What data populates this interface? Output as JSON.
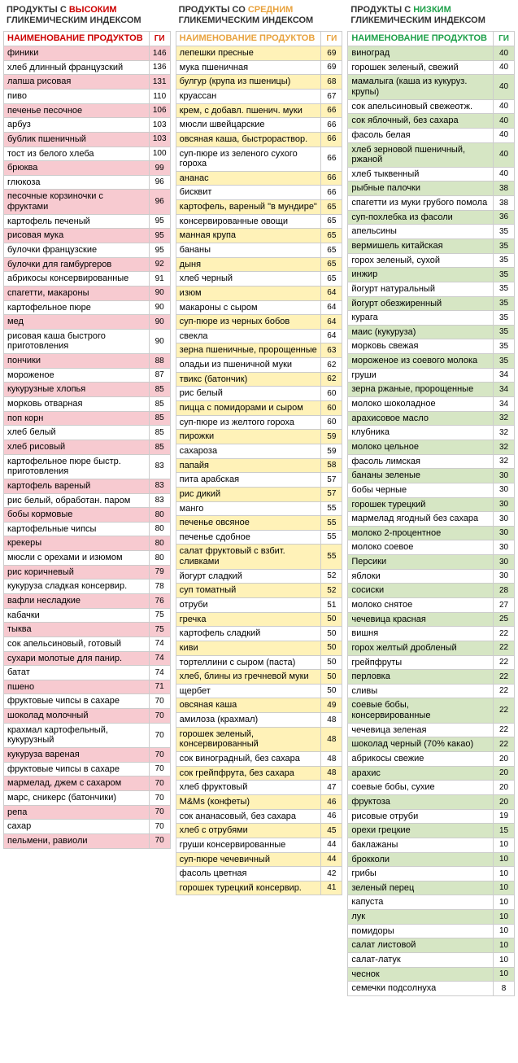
{
  "columns": [
    {
      "title_prefix": "ПРОДУКТЫ С ",
      "title_accent": "ВЫСОКИМ",
      "title_suffix": " ГЛИКЕМИЧЕСКИМ ИНДЕКСОМ",
      "accent_color": "#cc0000",
      "hl_color": "#f7cad0",
      "header_name": "НАИМЕНОВАНИЕ ПРОДУКТОВ",
      "header_gi": "ГИ",
      "gap_after": 29,
      "rows": [
        {
          "n": "финики",
          "g": 146,
          "hl": true
        },
        {
          "n": "хлеб длинный французский",
          "g": 136,
          "hl": false
        },
        {
          "n": "лапша рисовая",
          "g": 131,
          "hl": true
        },
        {
          "n": "пиво",
          "g": 110,
          "hl": false
        },
        {
          "n": "печенье песочное",
          "g": 106,
          "hl": true
        },
        {
          "n": "арбуз",
          "g": 103,
          "hl": false
        },
        {
          "n": "бублик пшеничный",
          "g": 103,
          "hl": true
        },
        {
          "n": "тост из белого хлеба",
          "g": 100,
          "hl": false
        },
        {
          "n": "брюква",
          "g": 99,
          "hl": true
        },
        {
          "n": "глюкоза",
          "g": 96,
          "hl": false
        },
        {
          "n": "песочные корзиночки с фруктами",
          "g": 96,
          "hl": true
        },
        {
          "n": "картофель печеный",
          "g": 95,
          "hl": false
        },
        {
          "n": "рисовая мука",
          "g": 95,
          "hl": true
        },
        {
          "n": "булочки французские",
          "g": 95,
          "hl": false
        },
        {
          "n": "булочки для гамбургеров",
          "g": 92,
          "hl": true
        },
        {
          "n": "абрикосы консервированные",
          "g": 91,
          "hl": false
        },
        {
          "n": "спагетти, макароны",
          "g": 90,
          "hl": true
        },
        {
          "n": "картофельное пюре",
          "g": 90,
          "hl": false
        },
        {
          "n": "мед",
          "g": 90,
          "hl": true
        },
        {
          "n": "рисовая каша быстрого приготовления",
          "g": 90,
          "hl": false
        },
        {
          "n": "пончики",
          "g": 88,
          "hl": true
        },
        {
          "n": "мороженое",
          "g": 87,
          "hl": false
        },
        {
          "n": "кукурузные хлопья",
          "g": 85,
          "hl": true
        },
        {
          "n": "морковь отварная",
          "g": 85,
          "hl": false
        },
        {
          "n": "поп корн",
          "g": 85,
          "hl": true
        },
        {
          "n": "хлеб белый",
          "g": 85,
          "hl": false
        },
        {
          "n": "хлеб рисовый",
          "g": 85,
          "hl": true
        },
        {
          "n": "картофельное пюре быстр. приготовления",
          "g": 83,
          "hl": false
        },
        {
          "n": "картофель вареный",
          "g": 83,
          "hl": true
        },
        {
          "n": "рис белый, обработан. паром",
          "g": 83,
          "hl": false
        },
        {
          "n": "бобы кормовые",
          "g": 80,
          "hl": true
        },
        {
          "n": "картофельные чипсы",
          "g": 80,
          "hl": false
        },
        {
          "n": "крекеры",
          "g": 80,
          "hl": true
        },
        {
          "n": "мюсли с орехами и изюмом",
          "g": 80,
          "hl": false
        },
        {
          "n": "рис коричневый",
          "g": 79,
          "hl": true
        },
        {
          "n": "кукуруза сладкая консервир.",
          "g": 78,
          "hl": false
        },
        {
          "n": "вафли несладкие",
          "g": 76,
          "hl": true
        },
        {
          "n": "кабачки",
          "g": 75,
          "hl": false
        },
        {
          "n": "тыква",
          "g": 75,
          "hl": true
        },
        {
          "n": "сок апельсиновый, готовый",
          "g": 74,
          "hl": false
        },
        {
          "n": "сухари молотые для панир.",
          "g": 74,
          "hl": true
        },
        {
          "n": "батат",
          "g": 74,
          "hl": false
        },
        {
          "n": "пшено",
          "g": 71,
          "hl": true
        },
        {
          "n": "фруктовые чипсы в сахаре",
          "g": 70,
          "hl": false
        },
        {
          "n": "шоколад молочный",
          "g": 70,
          "hl": true
        },
        {
          "n": "крахмал картофельный, кукурузный",
          "g": 70,
          "hl": false
        },
        {
          "n": "кукуруза вареная",
          "g": 70,
          "hl": true
        },
        {
          "n": "фруктовые чипсы в сахаре",
          "g": 70,
          "hl": false
        },
        {
          "n": "мармелад, джем с сахаром",
          "g": 70,
          "hl": true
        },
        {
          "n": "марс, сникерс (батончики)",
          "g": 70,
          "hl": false
        },
        {
          "n": "репа",
          "g": 70,
          "hl": true
        },
        {
          "n": "сахар",
          "g": 70,
          "hl": false
        },
        {
          "n": "пельмени, равиоли",
          "g": 70,
          "hl": true
        }
      ]
    },
    {
      "title_prefix": "ПРОДУКТЫ СО ",
      "title_accent": "СРЕДНИМ",
      "title_suffix": " ГЛИКЕМИЧЕСКИМ ИНДЕКСОМ",
      "accent_color": "#e8a23d",
      "hl_color": "#fff2b8",
      "header_name": "НАИМЕНОВАНИЕ ПРОДУКТОВ",
      "header_gi": "ГИ",
      "gap_after": 29,
      "rows": [
        {
          "n": "лепешки пресные",
          "g": 69,
          "hl": true
        },
        {
          "n": "мука пшеничная",
          "g": 69,
          "hl": false
        },
        {
          "n": "булгур (крупа из пшеницы)",
          "g": 68,
          "hl": true
        },
        {
          "n": "круассан",
          "g": 67,
          "hl": false
        },
        {
          "n": "крем, с добавл. пшенич. муки",
          "g": 66,
          "hl": true
        },
        {
          "n": "мюсли швейцарские",
          "g": 66,
          "hl": false
        },
        {
          "n": "овсяная каша, быстрораствор.",
          "g": 66,
          "hl": true
        },
        {
          "n": "суп-пюре из зеленого сухого гороха",
          "g": 66,
          "hl": false
        },
        {
          "n": "ананас",
          "g": 66,
          "hl": true
        },
        {
          "n": "бисквит",
          "g": 66,
          "hl": false
        },
        {
          "n": "картофель, вареный \"в мундире\"",
          "g": 65,
          "hl": true
        },
        {
          "n": "консервированные овощи",
          "g": 65,
          "hl": false
        },
        {
          "n": "манная крупа",
          "g": 65,
          "hl": true
        },
        {
          "n": "бананы",
          "g": 65,
          "hl": false
        },
        {
          "n": "дыня",
          "g": 65,
          "hl": true
        },
        {
          "n": "хлеб черный",
          "g": 65,
          "hl": false
        },
        {
          "n": "изюм",
          "g": 64,
          "hl": true
        },
        {
          "n": "макароны с сыром",
          "g": 64,
          "hl": false
        },
        {
          "n": "суп-пюре из черных бобов",
          "g": 64,
          "hl": true
        },
        {
          "n": "свекла",
          "g": 64,
          "hl": false
        },
        {
          "n": "зерна пшеничные, пророщенные",
          "g": 63,
          "hl": true
        },
        {
          "n": "оладьи из пшеничной муки",
          "g": 62,
          "hl": false
        },
        {
          "n": "твикс (батончик)",
          "g": 62,
          "hl": true
        },
        {
          "n": "рис белый",
          "g": 60,
          "hl": false
        },
        {
          "n": "пицца с помидорами и сыром",
          "g": 60,
          "hl": true
        },
        {
          "n": "суп-пюре из желтого гороха",
          "g": 60,
          "hl": false
        },
        {
          "n": "пирожки",
          "g": 59,
          "hl": true
        },
        {
          "n": "сахароза",
          "g": 59,
          "hl": false
        },
        {
          "n": "папайя",
          "g": 58,
          "hl": true
        },
        {
          "n": "пита арабская",
          "g": 57,
          "hl": false
        },
        {
          "n": "рис дикий",
          "g": 57,
          "hl": true
        },
        {
          "n": "манго",
          "g": 55,
          "hl": false
        },
        {
          "n": "печенье овсяное",
          "g": 55,
          "hl": true
        },
        {
          "n": "печенье сдобное",
          "g": 55,
          "hl": false
        },
        {
          "n": "салат фруктовый с взбит. сливками",
          "g": 55,
          "hl": true
        },
        {
          "n": "йогурт сладкий",
          "g": 52,
          "hl": false
        },
        {
          "n": "суп томатный",
          "g": 52,
          "hl": true
        },
        {
          "n": "отруби",
          "g": 51,
          "hl": false
        },
        {
          "n": "гречка",
          "g": 50,
          "hl": true
        },
        {
          "n": "картофель сладкий",
          "g": 50,
          "hl": false
        },
        {
          "n": "киви",
          "g": 50,
          "hl": true
        },
        {
          "n": "тортеллини с сыром (паста)",
          "g": 50,
          "hl": false
        },
        {
          "n": "хлеб, блины из гречневой муки",
          "g": 50,
          "hl": true
        },
        {
          "n": "щербет",
          "g": 50,
          "hl": false
        },
        {
          "n": "овсяная каша",
          "g": 49,
          "hl": true
        },
        {
          "n": "амилоза (крахмал)",
          "g": 48,
          "hl": false
        },
        {
          "n": "горошек зеленый, консервированный",
          "g": 48,
          "hl": true
        },
        {
          "n": "сок виноградный, без сахара",
          "g": 48,
          "hl": false
        },
        {
          "n": "сок грейпфрута, без сахара",
          "g": 48,
          "hl": true
        },
        {
          "n": "хлеб фруктовый",
          "g": 47,
          "hl": false
        },
        {
          "n": "M&Ms (конфеты)",
          "g": 46,
          "hl": true
        },
        {
          "n": "сок ананасовый, без сахара",
          "g": 46,
          "hl": false
        },
        {
          "n": "хлеб с отрубями",
          "g": 45,
          "hl": true
        },
        {
          "n": "груши консервированные",
          "g": 44,
          "hl": false
        },
        {
          "n": "суп-пюре чечевичный",
          "g": 44,
          "hl": true
        },
        {
          "n": "фасоль цветная",
          "g": 42,
          "hl": false
        },
        {
          "n": "горошек турецкий консервир.",
          "g": 41,
          "hl": true
        }
      ]
    },
    {
      "title_prefix": "ПРОДУКТЫ С ",
      "title_accent": "НИЗКИМ",
      "title_suffix": " ГЛИКЕМИЧЕСКИМ ИНДЕКСОМ",
      "accent_color": "#1fa04a",
      "hl_color": "#d6e6c4",
      "header_name": "НАИМЕНОВАНИЕ ПРОДУКТОВ",
      "header_gi": "ГИ",
      "gap_after": 29,
      "rows": [
        {
          "n": "виноград",
          "g": 40,
          "hl": true
        },
        {
          "n": "горошек зеленый, свежий",
          "g": 40,
          "hl": false
        },
        {
          "n": "мамалыга (каша из кукуруз. крупы)",
          "g": 40,
          "hl": true
        },
        {
          "n": "сок апельсиновый свежеотж.",
          "g": 40,
          "hl": false
        },
        {
          "n": "сок яблочный, без сахара",
          "g": 40,
          "hl": true
        },
        {
          "n": "фасоль белая",
          "g": 40,
          "hl": false
        },
        {
          "n": "хлеб зерновой пшеничный, ржаной",
          "g": 40,
          "hl": true
        },
        {
          "n": "хлеб тыквенный",
          "g": 40,
          "hl": false
        },
        {
          "n": "рыбные палочки",
          "g": 38,
          "hl": true
        },
        {
          "n": "спагетти из муки грубого помола",
          "g": 38,
          "hl": false
        },
        {
          "n": "суп-похлебка из фасоли",
          "g": 36,
          "hl": true
        },
        {
          "n": "апельсины",
          "g": 35,
          "hl": false
        },
        {
          "n": "вермишель китайская",
          "g": 35,
          "hl": true
        },
        {
          "n": "горох зеленый, сухой",
          "g": 35,
          "hl": false
        },
        {
          "n": "инжир",
          "g": 35,
          "hl": true
        },
        {
          "n": "йогурт натуральный",
          "g": 35,
          "hl": false
        },
        {
          "n": "йогурт обезжиренный",
          "g": 35,
          "hl": true
        },
        {
          "n": "курага",
          "g": 35,
          "hl": false
        },
        {
          "n": "маис (кукуруза)",
          "g": 35,
          "hl": true
        },
        {
          "n": "морковь свежая",
          "g": 35,
          "hl": false
        },
        {
          "n": "мороженое из соевого молока",
          "g": 35,
          "hl": true
        },
        {
          "n": "груши",
          "g": 34,
          "hl": false
        },
        {
          "n": "зерна ржаные, пророщенные",
          "g": 34,
          "hl": true
        },
        {
          "n": "молоко шоколадное",
          "g": 34,
          "hl": false
        },
        {
          "n": "арахисовое масло",
          "g": 32,
          "hl": true
        },
        {
          "n": "клубника",
          "g": 32,
          "hl": false
        },
        {
          "n": "молоко цельное",
          "g": 32,
          "hl": true
        },
        {
          "n": "фасоль лимская",
          "g": 32,
          "hl": false
        },
        {
          "n": "бананы зеленые",
          "g": 30,
          "hl": true
        },
        {
          "n": "бобы черные",
          "g": 30,
          "hl": false
        },
        {
          "n": "горошек турецкий",
          "g": 30,
          "hl": true
        },
        {
          "n": "мармелад ягодный без сахара",
          "g": 30,
          "hl": false
        },
        {
          "n": "молоко 2-процентное",
          "g": 30,
          "hl": true
        },
        {
          "n": "молоко соевое",
          "g": 30,
          "hl": false
        },
        {
          "n": "Персики",
          "g": 30,
          "hl": true
        },
        {
          "n": "яблоки",
          "g": 30,
          "hl": false
        },
        {
          "n": "сосиски",
          "g": 28,
          "hl": true
        },
        {
          "n": "молоко снятое",
          "g": 27,
          "hl": false
        },
        {
          "n": "чечевица красная",
          "g": 25,
          "hl": true
        },
        {
          "n": "вишня",
          "g": 22,
          "hl": false
        },
        {
          "n": "горох желтый дробленый",
          "g": 22,
          "hl": true
        },
        {
          "n": "грейпфруты",
          "g": 22,
          "hl": false
        },
        {
          "n": "перловка",
          "g": 22,
          "hl": true
        },
        {
          "n": "сливы",
          "g": 22,
          "hl": false
        },
        {
          "n": "соевые бобы, консервированные",
          "g": 22,
          "hl": true
        },
        {
          "n": "чечевица зеленая",
          "g": 22,
          "hl": false
        },
        {
          "n": "шоколад черный (70% какао)",
          "g": 22,
          "hl": true
        },
        {
          "n": "абрикосы свежие",
          "g": 20,
          "hl": false
        },
        {
          "n": "арахис",
          "g": 20,
          "hl": true
        },
        {
          "n": "соевые бобы, сухие",
          "g": 20,
          "hl": false
        },
        {
          "n": "фруктоза",
          "g": 20,
          "hl": true
        },
        {
          "n": "рисовые отруби",
          "g": 19,
          "hl": false
        },
        {
          "n": "орехи грецкие",
          "g": 15,
          "hl": true
        },
        {
          "n": "баклажаны",
          "g": 10,
          "hl": false
        },
        {
          "n": "брокколи",
          "g": 10,
          "hl": true
        },
        {
          "n": "грибы",
          "g": 10,
          "hl": false
        },
        {
          "n": "зеленый перец",
          "g": 10,
          "hl": true
        },
        {
          "n": "капуста",
          "g": 10,
          "hl": false
        },
        {
          "n": "лук",
          "g": 10,
          "hl": true
        },
        {
          "n": "помидоры",
          "g": 10,
          "hl": false
        },
        {
          "n": "салат листовой",
          "g": 10,
          "hl": true
        },
        {
          "n": "салат-латук",
          "g": 10,
          "hl": false
        },
        {
          "n": "чеснок",
          "g": 10,
          "hl": true
        },
        {
          "n": "семечки подсолнуха",
          "g": 8,
          "hl": false
        }
      ]
    }
  ]
}
